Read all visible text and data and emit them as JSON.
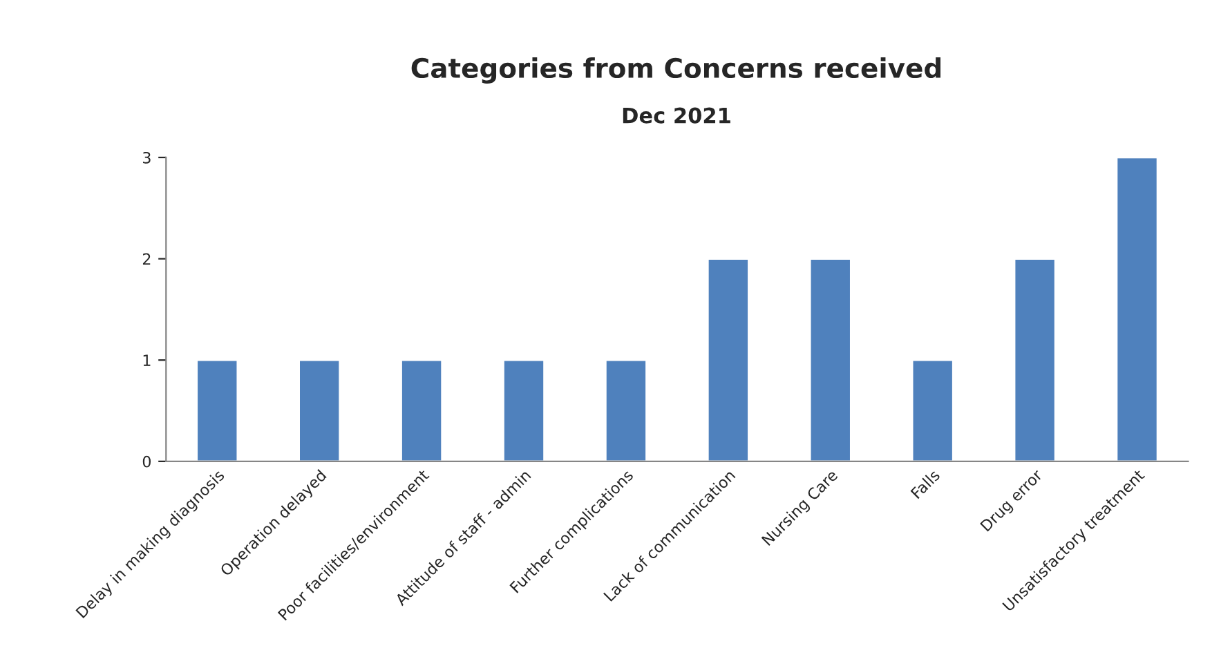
{
  "chart_data": {
    "type": "bar",
    "title": "Categories from Concerns received",
    "subtitle": "Dec 2021",
    "categories": [
      "Delay in making diagnosis",
      "Operation delayed",
      "Poor facilities/environment",
      "Attitude of staff - admin",
      "Further complications",
      "Lack of communication",
      "Nursing Care",
      "Falls",
      "Drug error",
      "Unsatisfactory treatment"
    ],
    "values": [
      1,
      1,
      1,
      1,
      1,
      2,
      2,
      1,
      2,
      3
    ],
    "color": "#4f81bd",
    "ylim": [
      0,
      3
    ],
    "yticks": [
      0,
      1,
      2,
      3
    ],
    "grid": false,
    "legend": false
  }
}
